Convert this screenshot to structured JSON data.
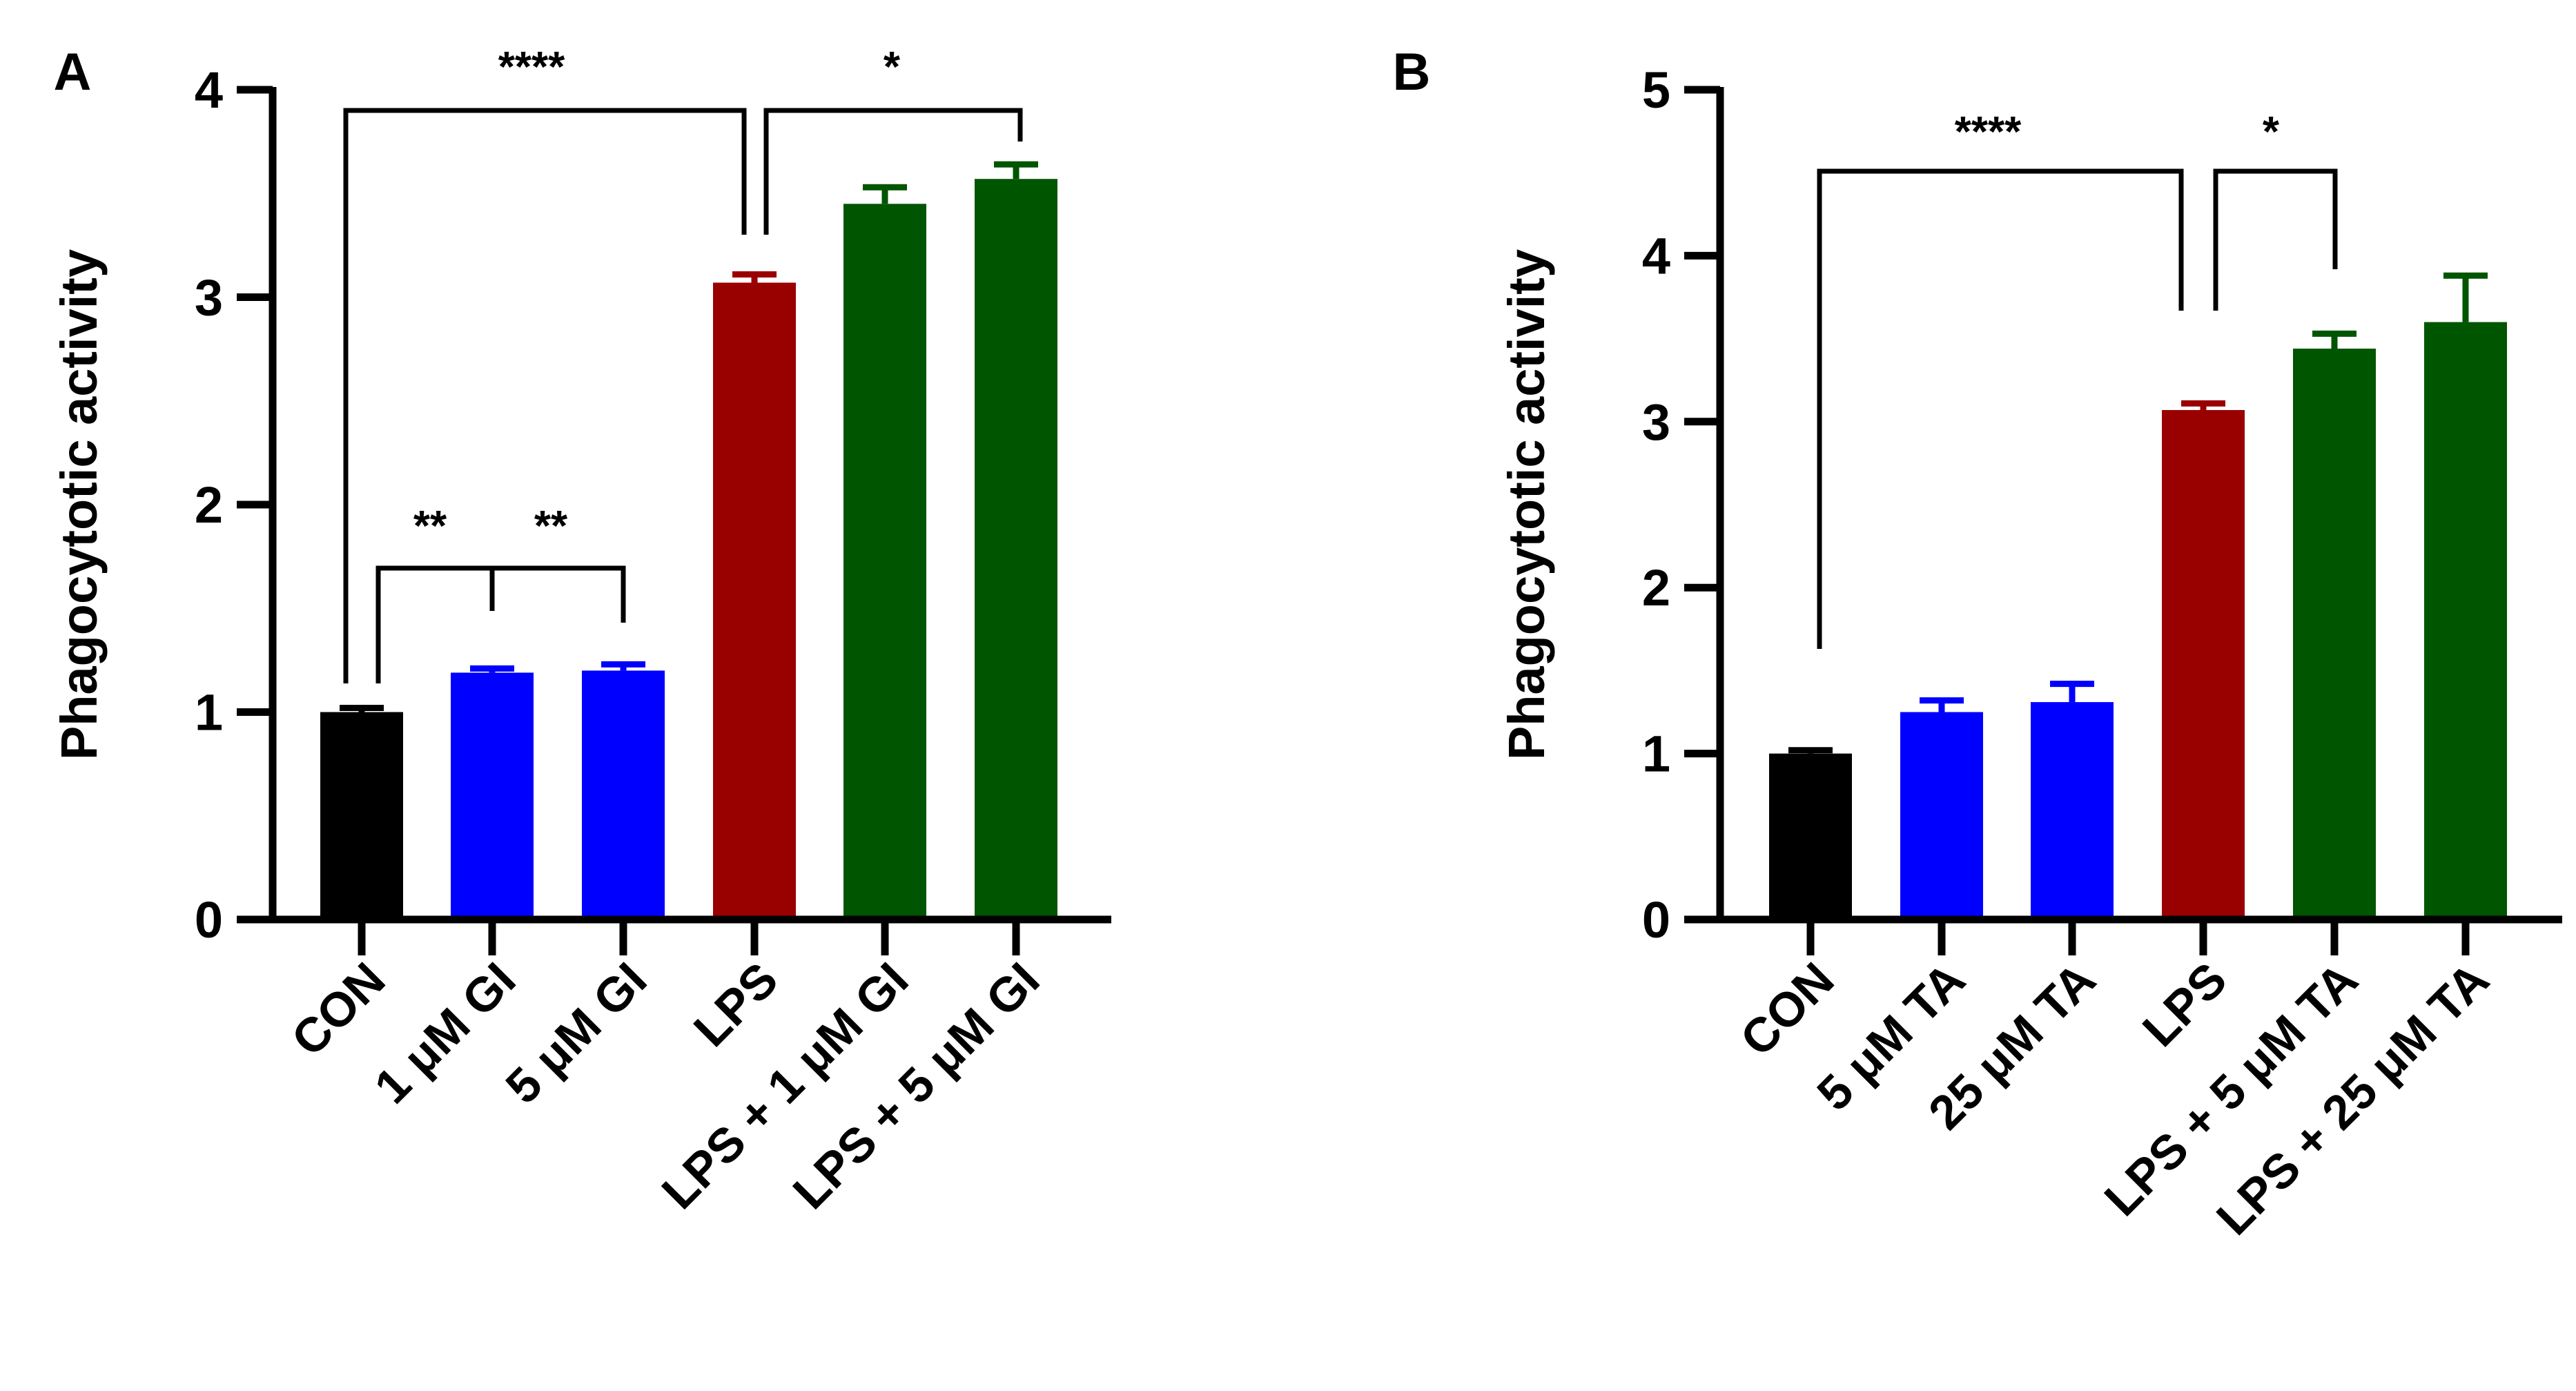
{
  "chart_data": [
    {
      "type": "bar",
      "panel_label": "A",
      "ylabel": "Phagocytotic activity",
      "ylim": [
        0,
        4
      ],
      "yticks": [
        "0",
        "1",
        "2",
        "3",
        "4"
      ],
      "categories": [
        "CON",
        "1 μM GI",
        "5 μM GI",
        "LPS",
        "LPS + 1 μM GI",
        "LPS + 5 μM GI"
      ],
      "values": [
        1.0,
        1.19,
        1.2,
        3.07,
        3.45,
        3.57
      ],
      "errors": [
        0.02,
        0.02,
        0.03,
        0.04,
        0.08,
        0.07
      ],
      "colors": [
        "#000000",
        "#0000ff",
        "#0000ff",
        "#990000",
        "#005500",
        "#005500"
      ],
      "significance": [
        {
          "label": "****",
          "from": "CON",
          "to": "LPS"
        },
        {
          "label": "*",
          "from": "LPS",
          "to": "LPS + 5 μM GI"
        },
        {
          "label": "**",
          "from": "CON",
          "to": "1 μM GI"
        },
        {
          "label": "**",
          "from": "1 μM GI",
          "to": "5 μM GI"
        }
      ]
    },
    {
      "type": "bar",
      "panel_label": "B",
      "ylabel": "Phagocytotic activity",
      "ylim": [
        0,
        5
      ],
      "yticks": [
        "0",
        "1",
        "2",
        "3",
        "4",
        "5"
      ],
      "categories": [
        "CON",
        "5 μM TA",
        "25 μM TA",
        "LPS",
        "LPS + 5 μM TA",
        "LPS + 25 μM TA"
      ],
      "values": [
        1.0,
        1.25,
        1.31,
        3.07,
        3.44,
        3.6
      ],
      "errors": [
        0.02,
        0.07,
        0.11,
        0.04,
        0.09,
        0.28
      ],
      "colors": [
        "#000000",
        "#0000ff",
        "#0000ff",
        "#990000",
        "#005500",
        "#005500"
      ],
      "significance": [
        {
          "label": "****",
          "from": "CON",
          "to": "LPS"
        },
        {
          "label": "*",
          "from": "LPS",
          "to": "LPS + 5 μM TA"
        }
      ]
    }
  ]
}
